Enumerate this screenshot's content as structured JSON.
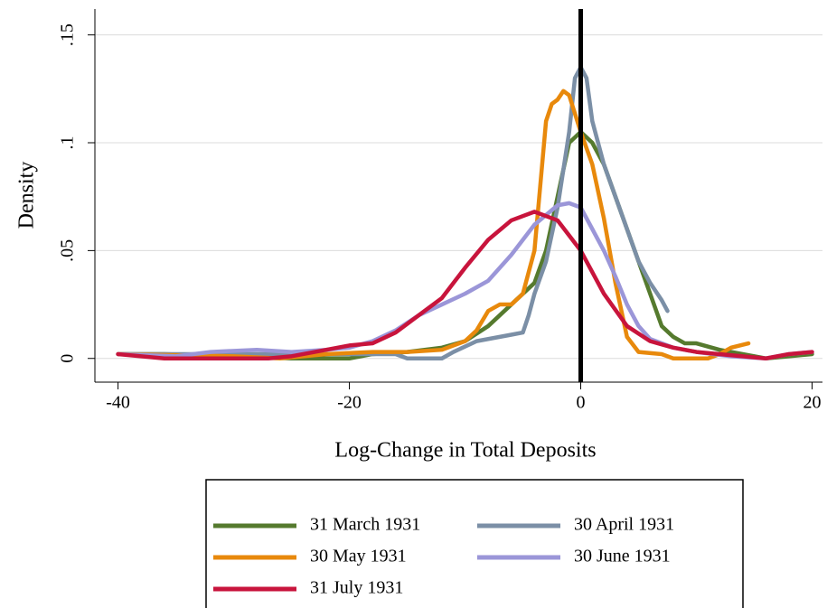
{
  "chart_data": {
    "type": "line",
    "x_label": "Log-Change in Total Deposits",
    "y_label": "Density",
    "xlim": [
      -42,
      20.9
    ],
    "ylim": [
      -0.011,
      0.162
    ],
    "xticks": [
      -40,
      -20,
      0,
      20
    ],
    "yticks": [
      0,
      {
        "value": 0.05,
        "label": ".05"
      },
      {
        "value": 0.1,
        "label": ".1"
      },
      {
        "value": 0.15,
        "label": ".15"
      }
    ],
    "grid": true,
    "xline": 0,
    "legend": "bottom",
    "series": [
      {
        "name": "31 March 1931",
        "color": "#557a2e",
        "x": [
          -40,
          -36,
          -30,
          -25,
          -20,
          -18,
          -15,
          -12,
          -10,
          -8,
          -6,
          -4,
          -3,
          -2,
          -1,
          0,
          1,
          2,
          3,
          4,
          5,
          6,
          7,
          8,
          9,
          10,
          12,
          14,
          16,
          18,
          20
        ],
        "values": [
          0.002,
          0.002,
          0.001,
          0.0,
          0.0,
          0.002,
          0.003,
          0.005,
          0.008,
          0.015,
          0.025,
          0.035,
          0.05,
          0.075,
          0.1,
          0.105,
          0.1,
          0.09,
          0.075,
          0.06,
          0.045,
          0.03,
          0.015,
          0.01,
          0.007,
          0.007,
          0.004,
          0.002,
          0.0,
          0.001,
          0.002
        ]
      },
      {
        "name": "30 April 1931",
        "color": "#7b8fa6",
        "x": [
          -40,
          -30,
          -20,
          -16,
          -15,
          -12,
          -11,
          -9,
          -7,
          -6,
          -5,
          -4.5,
          -4,
          -3,
          -2,
          -1,
          -0.5,
          0,
          0.5,
          1,
          2,
          3,
          4,
          5,
          6,
          7,
          7.5
        ],
        "values": [
          0.002,
          0.002,
          0.002,
          0.002,
          0.0,
          0.0,
          0.003,
          0.008,
          0.01,
          0.011,
          0.012,
          0.02,
          0.03,
          0.045,
          0.07,
          0.105,
          0.13,
          0.135,
          0.13,
          0.11,
          0.09,
          0.075,
          0.06,
          0.045,
          0.035,
          0.027,
          0.022
        ]
      },
      {
        "name": "30 May 1931",
        "color": "#e8890c",
        "x": [
          -40,
          -30,
          -26,
          -22,
          -18,
          -15,
          -12,
          -10,
          -9,
          -8,
          -7,
          -6,
          -5,
          -4,
          -3.5,
          -3,
          -2.5,
          -2,
          -1.5,
          -1,
          0,
          1,
          2,
          3,
          4,
          5,
          7,
          8,
          11,
          12,
          13,
          14.5
        ],
        "values": [
          0.002,
          0.001,
          0.0,
          0.002,
          0.003,
          0.003,
          0.004,
          0.008,
          0.013,
          0.022,
          0.025,
          0.025,
          0.03,
          0.05,
          0.08,
          0.11,
          0.118,
          0.12,
          0.124,
          0.122,
          0.105,
          0.09,
          0.065,
          0.035,
          0.01,
          0.003,
          0.002,
          0.0,
          0.0,
          0.002,
          0.005,
          0.007
        ]
      },
      {
        "name": "30 June 1931",
        "color": "#9b96d8",
        "x": [
          -40,
          -35,
          -32,
          -28,
          -25,
          -22,
          -20,
          -18,
          -16,
          -14,
          -12,
          -10,
          -8,
          -6,
          -4,
          -2,
          -1,
          0,
          1,
          2,
          3,
          4,
          5,
          6,
          8,
          10,
          13,
          16,
          18,
          20
        ],
        "values": [
          0.002,
          0.001,
          0.003,
          0.004,
          0.003,
          0.004,
          0.005,
          0.008,
          0.013,
          0.02,
          0.025,
          0.03,
          0.036,
          0.048,
          0.062,
          0.071,
          0.072,
          0.07,
          0.06,
          0.05,
          0.038,
          0.025,
          0.015,
          0.009,
          0.005,
          0.003,
          0.001,
          0.0,
          0.002,
          0.003
        ]
      },
      {
        "name": "31 July 1931",
        "color": "#c8143c",
        "x": [
          -40,
          -36,
          -30,
          -27,
          -25,
          -22,
          -20,
          -18,
          -16,
          -14,
          -12,
          -10,
          -8,
          -6,
          -4,
          -2,
          0,
          2,
          4,
          6,
          8,
          10,
          14,
          16,
          18,
          20
        ],
        "values": [
          0.002,
          0.0,
          0.0,
          0.0,
          0.001,
          0.004,
          0.006,
          0.007,
          0.012,
          0.02,
          0.028,
          0.042,
          0.055,
          0.064,
          0.068,
          0.064,
          0.05,
          0.03,
          0.015,
          0.008,
          0.005,
          0.003,
          0.001,
          0.0,
          0.002,
          0.003
        ]
      }
    ]
  }
}
